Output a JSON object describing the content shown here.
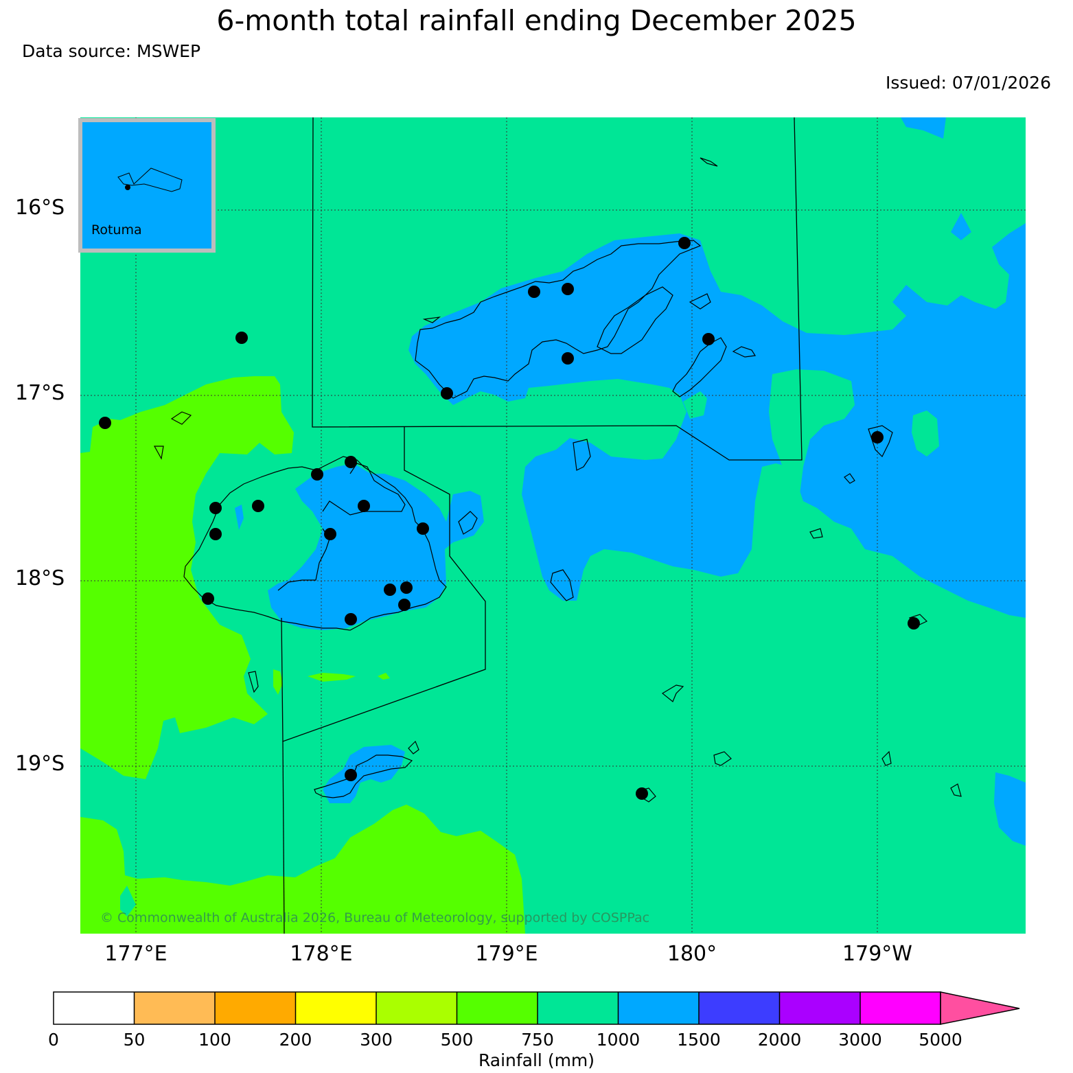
{
  "header": {
    "title": "6-month total rainfall ending December 2025",
    "source": "Data source: MSWEP",
    "issued": "Issued: 07/01/2026"
  },
  "axes": {
    "lat_labels": [
      "16°S",
      "17°S",
      "18°S",
      "19°S"
    ],
    "lon_labels": [
      "177°E",
      "178°E",
      "179°E",
      "180°",
      "179°W"
    ]
  },
  "inset": {
    "label": "Rotuma"
  },
  "copyright": "© Commonwealth of Australia 2026, Bureau of Meteorology, supported by COSPPac",
  "colorbar": {
    "ticks": [
      "0",
      "50",
      "100",
      "200",
      "300",
      "500",
      "750",
      "1000",
      "1500",
      "2000",
      "3000",
      "5000"
    ],
    "colors": [
      "#ffffff",
      "#ffbb55",
      "#ffaa00",
      "#ffff00",
      "#aaff00",
      "#55ff00",
      "#00e696",
      "#00a8ff",
      "#3d3dff",
      "#aa00ff",
      "#ff00ff",
      "#ff4fa0"
    ],
    "label": "Rainfall (mm)"
  },
  "legend_colors": {
    "band_500_750": "#55ff00",
    "band_750_1000": "#00e696",
    "band_1000_1500": "#00a8ff"
  }
}
